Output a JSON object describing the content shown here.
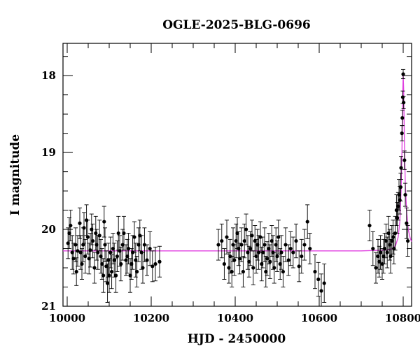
{
  "chart_data": {
    "type": "scatter",
    "title": "OGLE-2025-BLG-0696",
    "xlabel": "HJD - 2450000",
    "ylabel": "I magnitude",
    "xlim": [
      9990,
      10820
    ],
    "ylim": [
      21.0,
      17.58
    ],
    "y_inverted": true,
    "x_ticks": [
      10000,
      10200,
      10400,
      10600,
      10800
    ],
    "y_ticks": [
      18,
      19,
      20,
      21
    ],
    "x_tick_labels": [
      "10000",
      "10200",
      "10400",
      "10600",
      "10800"
    ],
    "y_tick_labels": [
      "18",
      "19",
      "20",
      "21"
    ],
    "grid": false,
    "legend": "none",
    "colors": {
      "points": "#000000",
      "model": "#e040e0"
    },
    "model": {
      "baseline": 20.28,
      "points": [
        [
          9990,
          20.28
        ],
        [
          10700,
          20.28
        ],
        [
          10760,
          20.27
        ],
        [
          10775,
          20.25
        ],
        [
          10782,
          20.21
        ],
        [
          10788,
          20.1
        ],
        [
          10792,
          19.9
        ],
        [
          10795,
          19.5
        ],
        [
          10797,
          19.0
        ],
        [
          10798,
          18.6
        ],
        [
          10799,
          18.2
        ],
        [
          10800,
          17.98
        ],
        [
          10801,
          18.15
        ],
        [
          10802,
          18.5
        ],
        [
          10803,
          18.9
        ],
        [
          10805,
          19.4
        ],
        [
          10808,
          19.75
        ],
        [
          10812,
          20.0
        ],
        [
          10817,
          20.12
        ],
        [
          10820,
          20.16
        ]
      ]
    },
    "series": [
      {
        "points": [
          [
            10002,
            20.18,
            0.2
          ],
          [
            10005,
            20.05,
            0.2
          ],
          [
            10008,
            19.95,
            0.2
          ],
          [
            10012,
            20.3,
            0.22
          ],
          [
            10015,
            20.38,
            0.2
          ],
          [
            10020,
            20.2,
            0.22
          ],
          [
            10022,
            20.55,
            0.18
          ],
          [
            10025,
            20.28,
            0.2
          ],
          [
            10030,
            19.92,
            0.2
          ],
          [
            10032,
            20.3,
            0.22
          ],
          [
            10035,
            20.45,
            0.2
          ],
          [
            10038,
            20.2,
            0.22
          ],
          [
            10040,
            19.98,
            0.2
          ],
          [
            10043,
            20.35,
            0.22
          ],
          [
            10046,
            19.88,
            0.2
          ],
          [
            10049,
            20.1,
            0.22
          ],
          [
            10052,
            20.38,
            0.2
          ],
          [
            10055,
            20.27,
            0.22
          ],
          [
            10058,
            20.0,
            0.2
          ],
          [
            10061,
            20.15,
            0.22
          ],
          [
            10065,
            20.5,
            0.2
          ],
          [
            10068,
            20.05,
            0.22
          ],
          [
            10070,
            20.2,
            0.2
          ],
          [
            10073,
            20.3,
            0.22
          ],
          [
            10077,
            20.08,
            0.2
          ],
          [
            10080,
            20.35,
            0.22
          ],
          [
            10083,
            20.45,
            0.2
          ],
          [
            10086,
            20.6,
            0.22
          ],
          [
            10088,
            19.9,
            0.2
          ],
          [
            10090,
            20.2,
            0.22
          ],
          [
            10093,
            20.48,
            0.2
          ],
          [
            10096,
            20.7,
            0.25
          ],
          [
            10098,
            20.4,
            0.22
          ],
          [
            10100,
            20.6,
            0.22
          ],
          [
            10103,
            20.3,
            0.2
          ],
          [
            10106,
            20.55,
            0.22
          ],
          [
            10109,
            20.25,
            0.2
          ],
          [
            10112,
            20.4,
            0.22
          ],
          [
            10116,
            20.6,
            0.22
          ],
          [
            10119,
            20.35,
            0.2
          ],
          [
            10122,
            20.05,
            0.22
          ],
          [
            10125,
            20.28,
            0.2
          ],
          [
            10128,
            20.45,
            0.22
          ],
          [
            10132,
            20.2,
            0.2
          ],
          [
            10135,
            20.05,
            0.22
          ],
          [
            10140,
            20.4,
            0.2
          ],
          [
            10143,
            20.35,
            0.22
          ],
          [
            10146,
            20.25,
            0.2
          ],
          [
            10150,
            20.6,
            0.22
          ],
          [
            10153,
            20.45,
            0.2
          ],
          [
            10156,
            20.3,
            0.22
          ],
          [
            10160,
            20.1,
            0.2
          ],
          [
            10163,
            20.4,
            0.22
          ],
          [
            10166,
            20.55,
            0.2
          ],
          [
            10170,
            20.2,
            0.22
          ],
          [
            10173,
            20.08,
            0.2
          ],
          [
            10177,
            20.3,
            0.22
          ],
          [
            10180,
            20.5,
            0.2
          ],
          [
            10184,
            20.2,
            0.22
          ],
          [
            10190,
            20.4,
            0.2
          ],
          [
            10197,
            20.25,
            0.22
          ],
          [
            10203,
            20.48,
            0.2
          ],
          [
            10210,
            20.45,
            0.22
          ],
          [
            10220,
            20.42,
            0.2
          ],
          [
            10360,
            20.2,
            0.2
          ],
          [
            10368,
            20.15,
            0.22
          ],
          [
            10374,
            20.45,
            0.2
          ],
          [
            10380,
            20.1,
            0.22
          ],
          [
            10385,
            20.5,
            0.2
          ],
          [
            10388,
            20.35,
            0.22
          ],
          [
            10392,
            20.55,
            0.2
          ],
          [
            10395,
            20.2,
            0.22
          ],
          [
            10398,
            20.4,
            0.2
          ],
          [
            10402,
            20.15,
            0.22
          ],
          [
            10405,
            20.05,
            0.2
          ],
          [
            10408,
            20.25,
            0.22
          ],
          [
            10411,
            20.38,
            0.2
          ],
          [
            10415,
            20.2,
            0.22
          ],
          [
            10419,
            20.55,
            0.2
          ],
          [
            10422,
            20.15,
            0.22
          ],
          [
            10426,
            20.0,
            0.2
          ],
          [
            10430,
            20.3,
            0.22
          ],
          [
            10433,
            20.42,
            0.2
          ],
          [
            10436,
            20.25,
            0.22
          ],
          [
            10440,
            20.08,
            0.2
          ],
          [
            10443,
            20.5,
            0.22
          ],
          [
            10447,
            20.15,
            0.2
          ],
          [
            10450,
            20.35,
            0.22
          ],
          [
            10453,
            20.2,
            0.2
          ],
          [
            10456,
            20.3,
            0.22
          ],
          [
            10460,
            20.1,
            0.2
          ],
          [
            10463,
            20.45,
            0.22
          ],
          [
            10466,
            20.3,
            0.2
          ],
          [
            10470,
            20.2,
            0.22
          ],
          [
            10473,
            20.55,
            0.2
          ],
          [
            10476,
            20.38,
            0.22
          ],
          [
            10480,
            20.25,
            0.2
          ],
          [
            10483,
            20.42,
            0.22
          ],
          [
            10487,
            20.15,
            0.2
          ],
          [
            10490,
            20.3,
            0.22
          ],
          [
            10493,
            20.5,
            0.2
          ],
          [
            10497,
            20.2,
            0.22
          ],
          [
            10500,
            20.35,
            0.2
          ],
          [
            10503,
            20.1,
            0.22
          ],
          [
            10507,
            20.45,
            0.2
          ],
          [
            10510,
            20.3,
            0.22
          ],
          [
            10514,
            20.55,
            0.2
          ],
          [
            10520,
            20.2,
            0.22
          ],
          [
            10527,
            20.4,
            0.2
          ],
          [
            10532,
            20.25,
            0.22
          ],
          [
            10538,
            20.3,
            0.2
          ],
          [
            10545,
            20.15,
            0.22
          ],
          [
            10552,
            20.48,
            0.2
          ],
          [
            10558,
            20.35,
            0.22
          ],
          [
            10565,
            20.2,
            0.2
          ],
          [
            10572,
            19.9,
            0.22
          ],
          [
            10578,
            20.25,
            0.2
          ],
          [
            10590,
            20.55,
            0.22
          ],
          [
            10598,
            20.65,
            0.22
          ],
          [
            10605,
            20.8,
            0.22
          ],
          [
            10612,
            20.7,
            0.25
          ],
          [
            10720,
            19.95,
            0.2
          ],
          [
            10728,
            20.25,
            0.22
          ],
          [
            10735,
            20.5,
            0.2
          ],
          [
            10740,
            20.35,
            0.22
          ],
          [
            10743,
            20.42,
            0.2
          ],
          [
            10746,
            20.3,
            0.22
          ],
          [
            10750,
            20.45,
            0.2
          ],
          [
            10753,
            20.35,
            0.22
          ],
          [
            10756,
            20.25,
            0.2
          ],
          [
            10759,
            20.15,
            0.22
          ],
          [
            10762,
            20.3,
            0.2
          ],
          [
            10765,
            20.05,
            0.22
          ],
          [
            10768,
            20.2,
            0.2
          ],
          [
            10770,
            20.35,
            0.22
          ],
          [
            10773,
            20.15,
            0.2
          ],
          [
            10776,
            20.1,
            0.22
          ],
          [
            10778,
            20.25,
            0.2
          ],
          [
            10781,
            20.05,
            0.22
          ],
          [
            10784,
            19.75,
            0.2
          ],
          [
            10786,
            19.85,
            0.2
          ],
          [
            10788,
            19.7,
            0.18
          ],
          [
            10790,
            19.55,
            0.2
          ],
          [
            10792,
            19.62,
            0.18
          ],
          [
            10794,
            19.45,
            0.18
          ],
          [
            10795,
            19.2,
            0.15
          ],
          [
            10797,
            18.75,
            0.1
          ],
          [
            10798,
            18.55,
            0.1
          ],
          [
            10799,
            18.28,
            0.08
          ],
          [
            10800,
            17.98,
            0.06
          ],
          [
            10801,
            18.35,
            0.08
          ],
          [
            10803,
            19.1,
            0.12
          ],
          [
            10805,
            19.55,
            0.15
          ],
          [
            10808,
            19.92,
            0.2
          ],
          [
            10811,
            20.15,
            0.2
          ]
        ]
      }
    ]
  }
}
